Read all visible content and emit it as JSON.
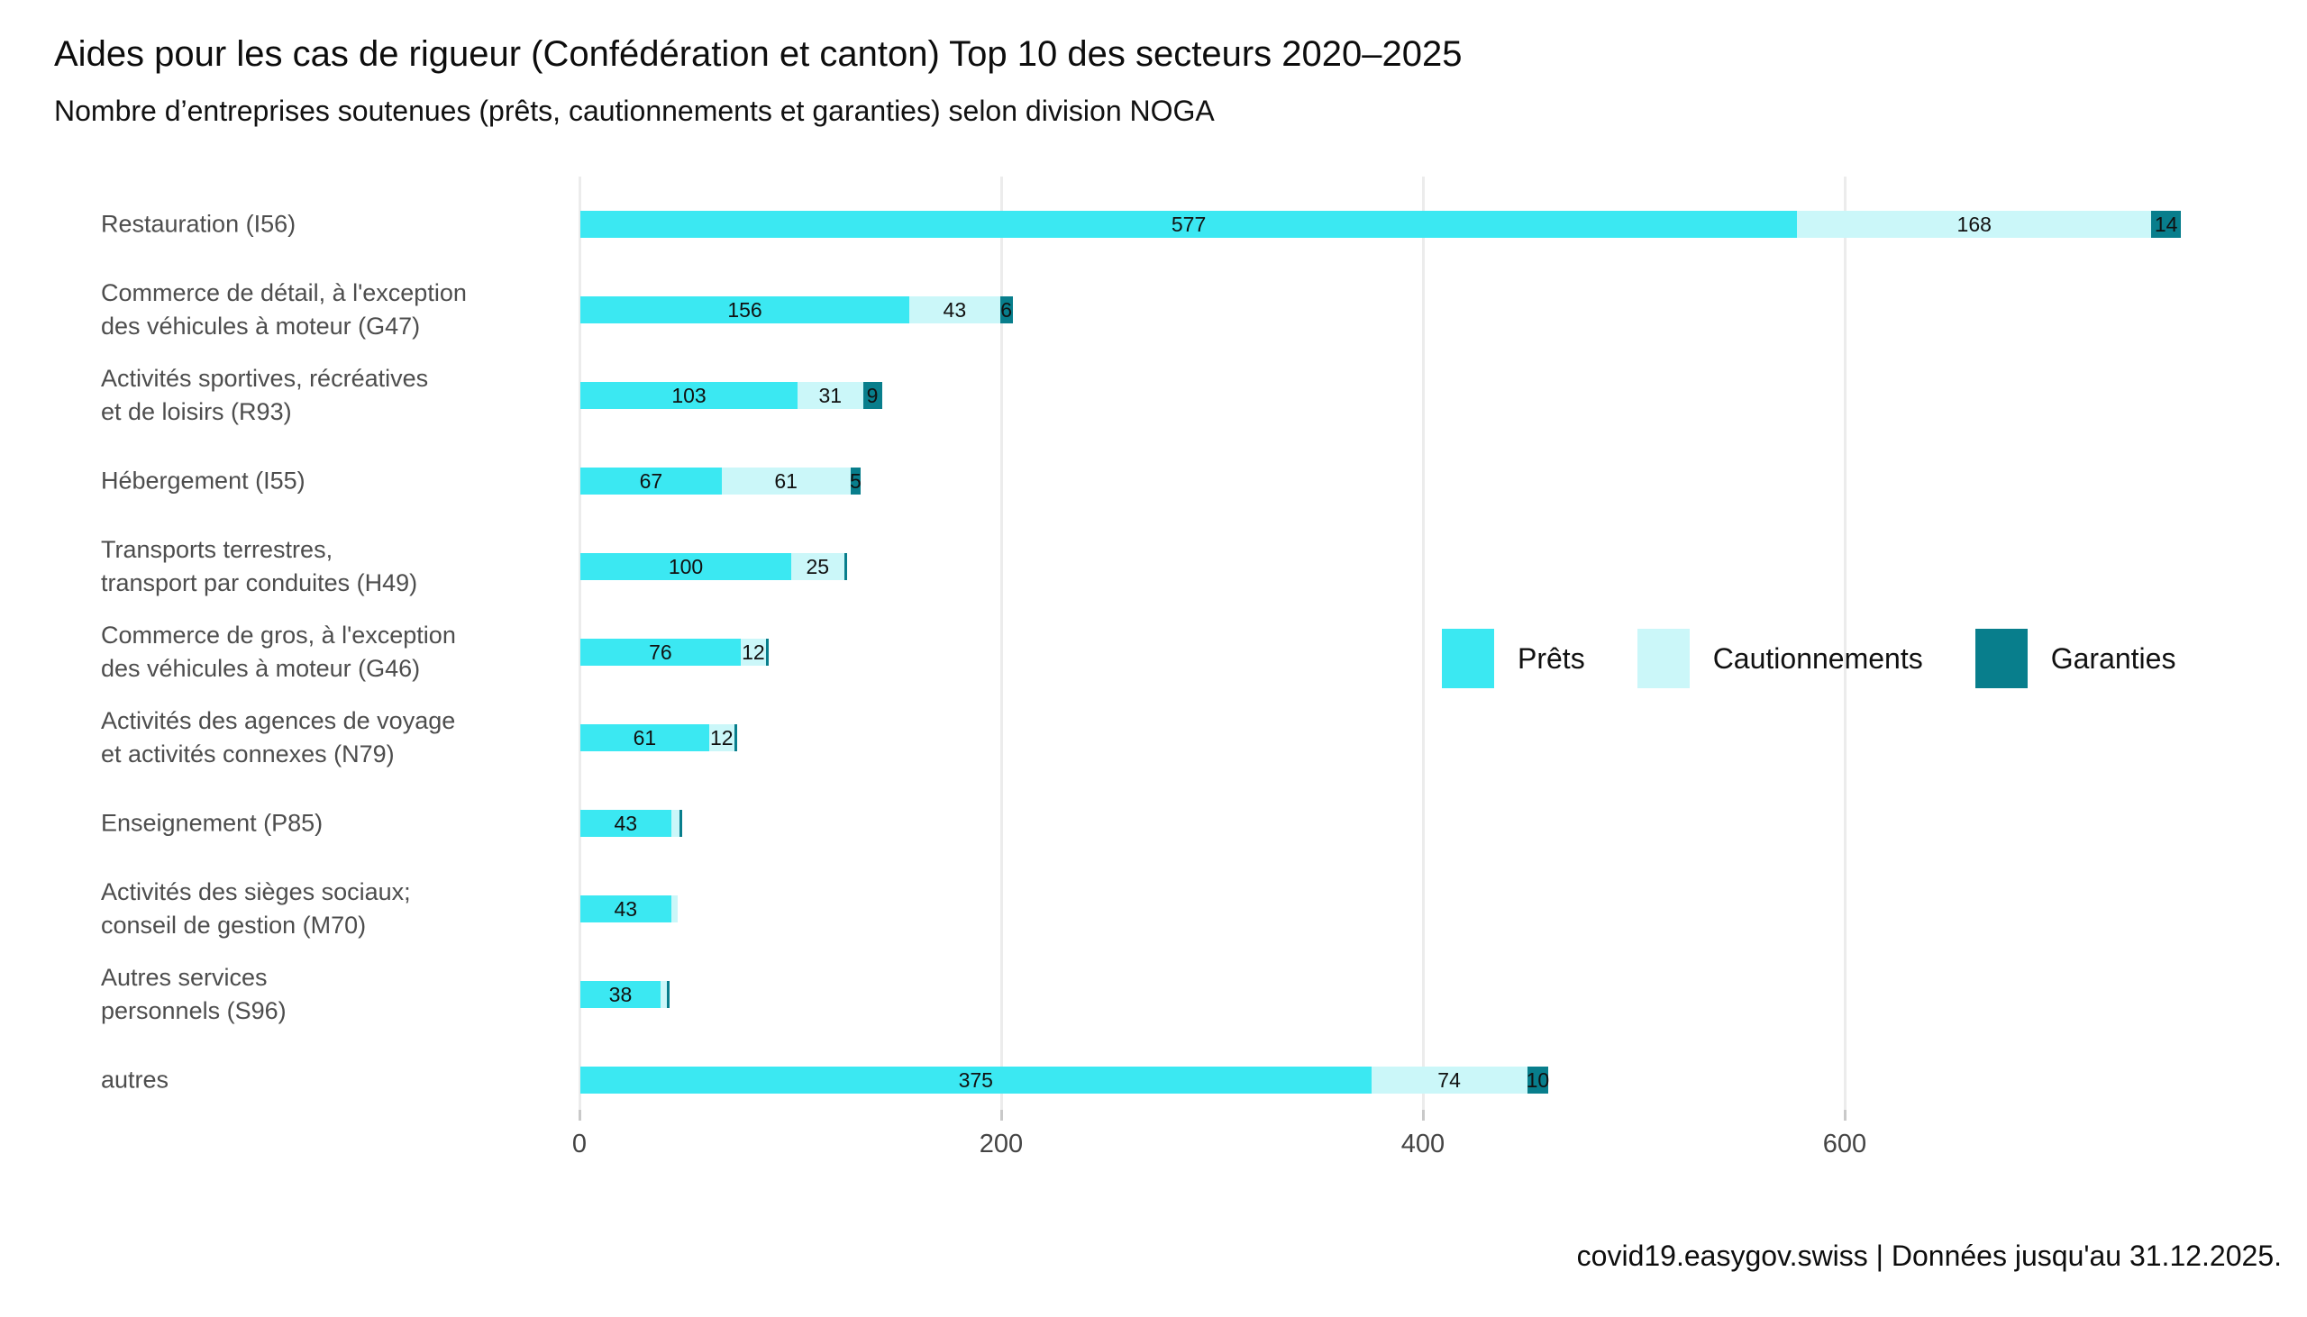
{
  "title": "Aides pour les cas de rigueur (Confédération et canton) Top 10 des secteurs 2020–2025",
  "subtitle": "Nombre d’entreprises soutenues (prêts, cautionnements et garanties) selon division NOGA",
  "footer": "covid19.easygov.swiss | Données jusqu'au 31.12.2025.",
  "colors": {
    "prets": "#3be8f2",
    "cautionnements": "#cbf7f9",
    "garanties": "#087e8c",
    "gridline": "#ececec",
    "axis_text": "#444444",
    "category_text": "#4d4d4d"
  },
  "chart_data": {
    "type": "bar",
    "orientation": "horizontal",
    "stacked": true,
    "grid": "vertical-major-only",
    "legend_position": "right-middle",
    "x_ticks": [
      0,
      200,
      400,
      600
    ],
    "xlim": [
      0,
      790
    ],
    "label_min_value": 5,
    "categories": [
      "Restauration (I56)",
      "Commerce de détail, à l'exception\ndes véhicules à moteur (G47)",
      "Activités sportives, récréatives\net de loisirs (R93)",
      "Hébergement (I55)",
      "Transports terrestres,\ntransport par conduites (H49)",
      "Commerce de gros, à l'exception\ndes véhicules à moteur (G46)",
      "Activités des agences de voyage\net activités connexes (N79)",
      "Enseignement (P85)",
      "Activités des sièges sociaux;\nconseil de gestion (M70)",
      "Autres services\npersonnels (S96)",
      "autres"
    ],
    "series": [
      {
        "name": "Prêts",
        "key": "prets",
        "color": "#3be8f2",
        "values": [
          577,
          156,
          103,
          67,
          100,
          76,
          61,
          43,
          43,
          38,
          375
        ]
      },
      {
        "name": "Cautionnements",
        "key": "cautionnements",
        "color": "#cbf7f9",
        "values": [
          168,
          43,
          31,
          61,
          25,
          12,
          12,
          4,
          3,
          3,
          74
        ]
      },
      {
        "name": "Garanties",
        "key": "garanties",
        "color": "#087e8c",
        "values": [
          14,
          6,
          9,
          5,
          1,
          1,
          1,
          1,
          0,
          1,
          10
        ]
      }
    ]
  }
}
